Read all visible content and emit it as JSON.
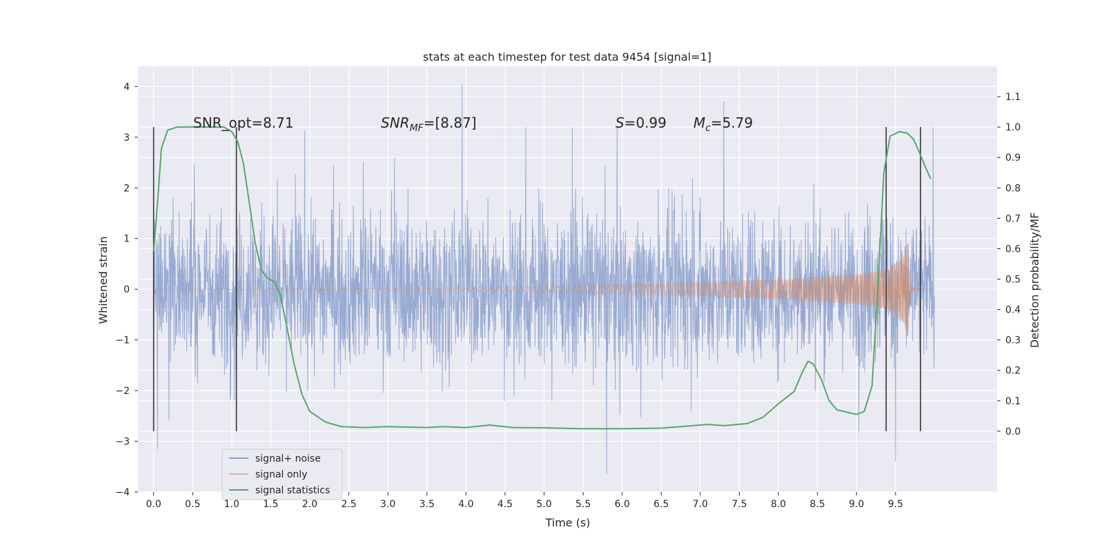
{
  "chart_data": {
    "type": "line",
    "title": "stats at each timestep for test data 9454 [signal=1]",
    "xlabel": "Time (s)",
    "ylabel": "Whitened strain",
    "ylabel_right": "Detection probability/MF",
    "xlim": [
      -0.2,
      10.8
    ],
    "ylim": [
      -4.0,
      4.4
    ],
    "ylim_right": [
      -0.2,
      1.2
    ],
    "xticks": [
      "0.0",
      "0.5",
      "1.0",
      "1.5",
      "2.0",
      "2.5",
      "3.0",
      "3.5",
      "4.0",
      "4.5",
      "5.0",
      "5.5",
      "6.0",
      "6.5",
      "7.0",
      "7.5",
      "8.0",
      "8.5",
      "9.0",
      "9.5"
    ],
    "yticks": [
      "4",
      "3",
      "2",
      "1",
      "0",
      "−1",
      "−2",
      "−3",
      "−4"
    ],
    "yticks_right": [
      "1.1",
      "1.0",
      "0.9",
      "0.8",
      "0.7",
      "0.6",
      "0.5",
      "0.4",
      "0.3",
      "0.2",
      "0.1",
      "0.0"
    ],
    "grid": true,
    "legend_position": "lower-left",
    "series": [
      {
        "name": "signal+ noise",
        "color": "#8a9fcc",
        "x_range": [
          0.0,
          10.0
        ],
        "amplitude_typical": 1.4,
        "extremes": [
          [
            3.95,
            4.05
          ],
          [
            7.3,
            3.7
          ],
          [
            5.8,
            -3.65
          ],
          [
            9.5,
            -3.4
          ],
          [
            0.05,
            -3.15
          ]
        ]
      },
      {
        "name": "signal only",
        "color": "#dd8452",
        "points": [
          [
            0.0,
            0.0
          ],
          [
            4.0,
            0.02
          ],
          [
            5.0,
            0.06
          ],
          [
            6.0,
            0.1
          ],
          [
            7.0,
            0.14
          ],
          [
            8.0,
            0.2
          ],
          [
            9.0,
            0.3
          ],
          [
            9.4,
            0.4
          ],
          [
            9.6,
            0.65
          ],
          [
            9.65,
            1.0
          ],
          [
            9.7,
            0.1
          ],
          [
            9.75,
            0.0
          ],
          [
            10.0,
            0.0
          ]
        ]
      },
      {
        "name": "signal statistics",
        "color": "#55a868",
        "axis": "right",
        "points": [
          [
            0.0,
            0.59
          ],
          [
            0.05,
            0.75
          ],
          [
            0.1,
            0.93
          ],
          [
            0.18,
            0.99
          ],
          [
            0.3,
            1.0
          ],
          [
            0.5,
            1.0
          ],
          [
            0.7,
            1.0
          ],
          [
            0.9,
            1.0
          ],
          [
            1.0,
            0.985
          ],
          [
            1.08,
            0.95
          ],
          [
            1.15,
            0.88
          ],
          [
            1.22,
            0.76
          ],
          [
            1.3,
            0.62
          ],
          [
            1.38,
            0.53
          ],
          [
            1.45,
            0.505
          ],
          [
            1.55,
            0.49
          ],
          [
            1.62,
            0.45
          ],
          [
            1.7,
            0.35
          ],
          [
            1.8,
            0.22
          ],
          [
            1.9,
            0.12
          ],
          [
            2.0,
            0.065
          ],
          [
            2.2,
            0.03
          ],
          [
            2.4,
            0.015
          ],
          [
            2.7,
            0.012
          ],
          [
            3.0,
            0.015
          ],
          [
            3.5,
            0.012
          ],
          [
            3.7,
            0.015
          ],
          [
            4.0,
            0.012
          ],
          [
            4.3,
            0.02
          ],
          [
            4.6,
            0.012
          ],
          [
            5.0,
            0.011
          ],
          [
            5.5,
            0.008
          ],
          [
            6.0,
            0.008
          ],
          [
            6.5,
            0.01
          ],
          [
            7.1,
            0.022
          ],
          [
            7.3,
            0.018
          ],
          [
            7.6,
            0.025
          ],
          [
            7.8,
            0.045
          ],
          [
            8.0,
            0.09
          ],
          [
            8.2,
            0.13
          ],
          [
            8.3,
            0.19
          ],
          [
            8.38,
            0.23
          ],
          [
            8.45,
            0.22
          ],
          [
            8.55,
            0.17
          ],
          [
            8.65,
            0.1
          ],
          [
            8.75,
            0.07
          ],
          [
            9.0,
            0.055
          ],
          [
            9.1,
            0.065
          ],
          [
            9.2,
            0.15
          ],
          [
            9.28,
            0.5
          ],
          [
            9.35,
            0.85
          ],
          [
            9.43,
            0.97
          ],
          [
            9.55,
            0.985
          ],
          [
            9.65,
            0.98
          ],
          [
            9.73,
            0.96
          ],
          [
            9.8,
            0.92
          ],
          [
            9.88,
            0.87
          ],
          [
            9.95,
            0.83
          ]
        ]
      }
    ],
    "vertical_lines_x": [
      0.0,
      1.06,
      9.38,
      9.82
    ],
    "annotations": [
      {
        "text": "SNR_opt=8.71",
        "x": 0.2,
        "y": 3.2
      },
      {
        "text_base": "SNR",
        "text_sub": "MF",
        "text_rest": "=[8.87]",
        "x": 2.6,
        "y": 3.2
      },
      {
        "text_italic": "S",
        "text_rest": "=0.99",
        "x": 5.6,
        "y": 3.2
      },
      {
        "text_base": "M",
        "text_sub": "c",
        "text_rest": "=5.79",
        "x": 6.6,
        "y": 3.2
      }
    ]
  }
}
